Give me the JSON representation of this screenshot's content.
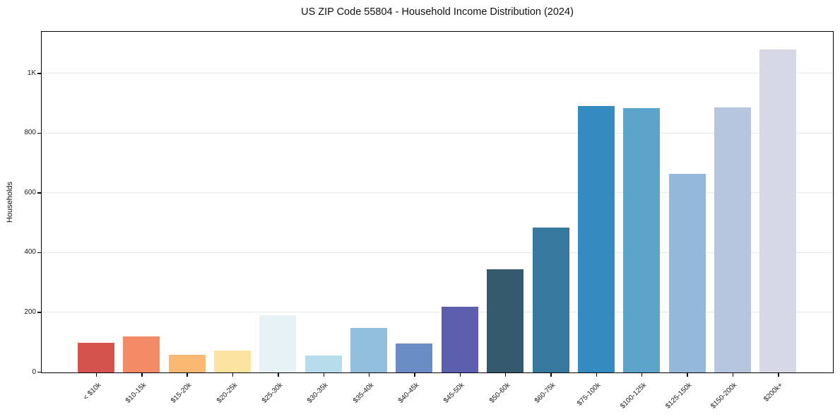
{
  "chart_data": {
    "type": "bar",
    "title": "US ZIP Code 55804 - Household Income Distribution (2024)",
    "xlabel": "",
    "ylabel": "Households",
    "categories": [
      "< $10k",
      "$10-15k",
      "$15-20k",
      "$20-25k",
      "$25-30k",
      "$30-35k",
      "$35-40k",
      "$40-45k",
      "$45-50k",
      "$50-60k",
      "$60-75k",
      "$75-100k",
      "$100-125k",
      "$125-150k",
      "$150-200k",
      "$200k+"
    ],
    "values": [
      100,
      120,
      60,
      74,
      191,
      56,
      148,
      98,
      219,
      346,
      485,
      891,
      884,
      666,
      888,
      1082
    ],
    "bar_colors": [
      "#d4544d",
      "#f28b66",
      "#f9b871",
      "#fce4a0",
      "#e6f2f6",
      "#b7dcec",
      "#90bedc",
      "#698dc4",
      "#5c5fae",
      "#35596d",
      "#37789f",
      "#348bbf",
      "#5ca4ca",
      "#94b8d9",
      "#b5c5de",
      "#d7d8e5"
    ],
    "y_ticks": [
      {
        "value": 0,
        "label": "0"
      },
      {
        "value": 200,
        "label": "200"
      },
      {
        "value": 400,
        "label": "400"
      },
      {
        "value": 600,
        "label": "600"
      },
      {
        "value": 800,
        "label": "800"
      },
      {
        "value": 1000,
        "label": "1K"
      }
    ],
    "ylim": [
      0,
      1138
    ],
    "grid": "horizontal",
    "legend": "none",
    "colors": {
      "background": "#ffffff",
      "spine": "#000000",
      "gridline": "#e9e9e9",
      "text": "#1a1a1a"
    }
  }
}
